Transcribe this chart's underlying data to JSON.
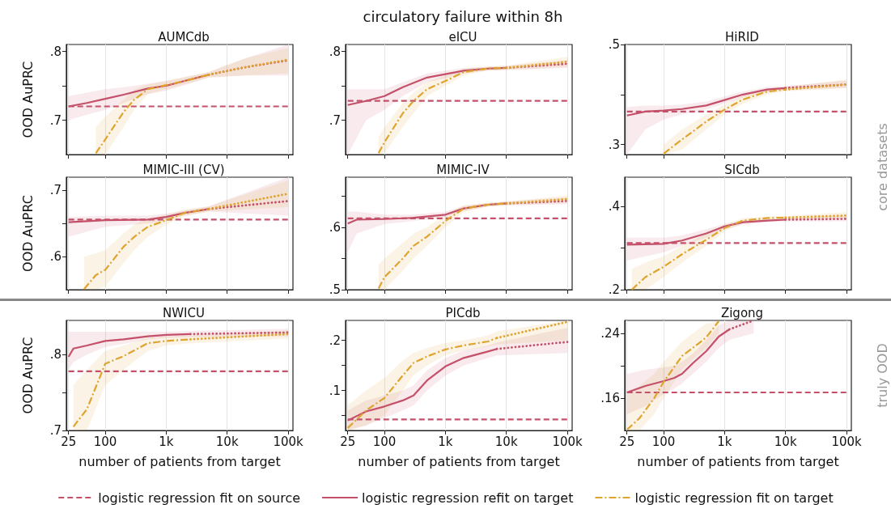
{
  "chart_data": [
    {
      "type": "line",
      "title": "AUMCdb",
      "ylabel": "OOD AuPRC",
      "log": "x",
      "grid": "x",
      "tick_labels": "y",
      "legend": "bottom",
      "xlim": [
        23,
        120000
      ],
      "xticks": [
        25,
        100,
        1000,
        10000,
        100000
      ],
      "ylim": [
        0.65,
        0.81
      ],
      "yticks": [
        {
          "value": 0.7,
          "label": ".7"
        },
        {
          "value": 0.75,
          "label": null
        },
        {
          "value": 0.8,
          "label": ".8"
        }
      ],
      "series": [
        {
          "name": "logistic regression fit on source",
          "color": "#c4506a",
          "line_style": "dashed",
          "x": [
            25,
            100000
          ],
          "values": [
            0.72,
            0.72
          ]
        },
        {
          "name": "logistic regression refit on target",
          "color": "#c4506a",
          "line_style": "solid",
          "x": [
            25,
            50,
            100,
            200,
            500,
            1000,
            2000,
            5000
          ],
          "values": [
            0.72,
            0.725,
            0.731,
            0.737,
            0.746,
            0.75,
            0.757,
            0.766
          ],
          "lower": [
            0.7,
            0.708,
            0.715,
            0.725,
            0.738,
            0.743,
            0.751,
            0.762
          ],
          "upper": [
            0.735,
            0.74,
            0.745,
            0.748,
            0.753,
            0.757,
            0.763,
            0.77
          ]
        },
        {
          "color": "#c4506a",
          "line_style": "dotted",
          "x": [
            5000,
            20000,
            100000
          ],
          "values": [
            0.766,
            0.777,
            0.787
          ],
          "lower": [
            0.762,
            0.765,
            0.765
          ],
          "upper": [
            0.77,
            0.79,
            0.81
          ]
        },
        {
          "name": "logistic regression fit on target",
          "color": "#dea42e",
          "line_style": "dashdot",
          "x": [
            70,
            100,
            200,
            300,
            500,
            1000,
            2000,
            5000
          ],
          "values": [
            0.652,
            0.672,
            0.712,
            0.73,
            0.745,
            0.751,
            0.757,
            0.766
          ],
          "lower": [
            0.65,
            0.65,
            0.69,
            0.715,
            0.738,
            0.745,
            0.752,
            0.762
          ],
          "upper": [
            0.69,
            0.705,
            0.73,
            0.745,
            0.752,
            0.757,
            0.762,
            0.77
          ]
        },
        {
          "color": "#dea42e",
          "line_style": "dotted",
          "x": [
            5000,
            20000,
            100000
          ],
          "values": [
            0.766,
            0.777,
            0.788
          ],
          "lower": [
            0.762,
            0.765,
            0.768
          ],
          "upper": [
            0.77,
            0.79,
            0.805
          ]
        }
      ]
    },
    {
      "type": "line",
      "title": "eICU",
      "log": "x",
      "grid": "x",
      "tick_labels": "y",
      "xlim": [
        23,
        120000
      ],
      "xticks": [
        25,
        100,
        1000,
        10000,
        100000
      ],
      "ylim": [
        0.65,
        0.81
      ],
      "yticks": [
        {
          "value": 0.7,
          "label": ".7"
        },
        {
          "value": 0.75,
          "label": null
        },
        {
          "value": 0.8,
          "label": ".8"
        }
      ],
      "annotations": [
        "circulatory failure within 8h"
      ],
      "series": [
        {
          "color": "#c4506a",
          "line_style": "dashed",
          "x": [
            25,
            100000
          ],
          "values": [
            0.728,
            0.728
          ]
        },
        {
          "color": "#c4506a",
          "line_style": "solid",
          "x": [
            25,
            50,
            100,
            200,
            500,
            1000,
            2000,
            5000,
            10000
          ],
          "values": [
            0.722,
            0.728,
            0.735,
            0.748,
            0.762,
            0.767,
            0.772,
            0.775,
            0.776
          ],
          "lower": [
            0.65,
            0.7,
            0.715,
            0.735,
            0.755,
            0.761,
            0.768,
            0.772,
            0.773
          ],
          "upper": [
            0.745,
            0.745,
            0.745,
            0.755,
            0.768,
            0.772,
            0.776,
            0.778,
            0.779
          ]
        },
        {
          "color": "#c4506a",
          "line_style": "dotted",
          "x": [
            10000,
            100000
          ],
          "values": [
            0.776,
            0.782
          ],
          "lower": [
            0.773,
            0.776
          ],
          "upper": [
            0.779,
            0.787
          ]
        },
        {
          "color": "#dea42e",
          "line_style": "dashdot",
          "x": [
            80,
            100,
            200,
            300,
            500,
            1000,
            2000,
            5000,
            10000
          ],
          "values": [
            0.652,
            0.668,
            0.71,
            0.728,
            0.745,
            0.757,
            0.77,
            0.775,
            0.776
          ],
          "lower": [
            0.65,
            0.652,
            0.69,
            0.71,
            0.735,
            0.75,
            0.765,
            0.772,
            0.773
          ],
          "upper": [
            0.675,
            0.69,
            0.725,
            0.74,
            0.755,
            0.765,
            0.775,
            0.778,
            0.779
          ]
        },
        {
          "color": "#dea42e",
          "line_style": "dotted",
          "x": [
            10000,
            100000
          ],
          "values": [
            0.776,
            0.785
          ],
          "lower": [
            0.773,
            0.778
          ],
          "upper": [
            0.779,
            0.792
          ]
        }
      ]
    },
    {
      "type": "line",
      "title": "HiRID",
      "log": "x",
      "grid": "x",
      "tick_labels": "y",
      "xlim": [
        23,
        120000
      ],
      "xticks": [
        25,
        100,
        1000,
        10000,
        100000
      ],
      "ylim": [
        0.28,
        0.5
      ],
      "yticks": [
        {
          "value": 0.3,
          "label": ".3"
        },
        {
          "value": 0.4,
          "label": null
        },
        {
          "value": 0.5,
          "label": ".5"
        }
      ],
      "annotations": [
        "core datasets"
      ],
      "series": [
        {
          "color": "#c4506a",
          "line_style": "dashed",
          "x": [
            25,
            100000
          ],
          "values": [
            0.366,
            0.366
          ]
        },
        {
          "color": "#c4506a",
          "line_style": "solid",
          "x": [
            25,
            50,
            100,
            200,
            500,
            1000,
            2000,
            5000,
            10000
          ],
          "values": [
            0.358,
            0.366,
            0.368,
            0.371,
            0.378,
            0.389,
            0.4,
            0.41,
            0.413
          ],
          "lower": [
            0.28,
            0.33,
            0.35,
            0.36,
            0.37,
            0.382,
            0.394,
            0.405,
            0.409
          ],
          "upper": [
            0.375,
            0.378,
            0.378,
            0.38,
            0.386,
            0.396,
            0.406,
            0.415,
            0.417
          ]
        },
        {
          "color": "#c4506a",
          "line_style": "dotted",
          "x": [
            10000,
            100000
          ],
          "values": [
            0.413,
            0.42
          ],
          "lower": [
            0.409,
            0.413
          ],
          "upper": [
            0.417,
            0.428
          ]
        },
        {
          "color": "#dea42e",
          "line_style": "dashdot",
          "x": [
            100,
            200,
            500,
            1000,
            2000,
            5000,
            10000
          ],
          "values": [
            0.282,
            0.31,
            0.346,
            0.37,
            0.39,
            0.406,
            0.41
          ],
          "lower": [
            0.28,
            0.29,
            0.33,
            0.36,
            0.382,
            0.4,
            0.406
          ],
          "upper": [
            0.3,
            0.33,
            0.36,
            0.38,
            0.398,
            0.412,
            0.415
          ]
        },
        {
          "color": "#dea42e",
          "line_style": "dotted",
          "x": [
            10000,
            100000
          ],
          "values": [
            0.41,
            0.42
          ],
          "lower": [
            0.406,
            0.413
          ],
          "upper": [
            0.415,
            0.43
          ]
        }
      ]
    },
    {
      "type": "line",
      "title": "MIMIC-III (CV)",
      "ylabel": "OOD AuPRC",
      "log": "x",
      "grid": "x",
      "tick_labels": "y",
      "xlim": [
        23,
        120000
      ],
      "xticks": [
        25,
        100,
        1000,
        10000,
        100000
      ],
      "ylim": [
        0.55,
        0.72
      ],
      "yticks": [
        {
          "value": 0.6,
          "label": ".6"
        },
        {
          "value": 0.65,
          "label": null
        },
        {
          "value": 0.7,
          "label": ".7"
        }
      ],
      "series": [
        {
          "color": "#c4506a",
          "line_style": "dashed",
          "x": [
            25,
            100000
          ],
          "values": [
            0.656,
            0.656
          ]
        },
        {
          "color": "#c4506a",
          "line_style": "solid",
          "x": [
            25,
            100,
            500,
            1000,
            2000,
            5000
          ],
          "values": [
            0.652,
            0.655,
            0.656,
            0.66,
            0.666,
            0.672
          ],
          "lower": [
            0.63,
            0.645,
            0.65,
            0.655,
            0.662,
            0.668
          ],
          "upper": [
            0.66,
            0.662,
            0.662,
            0.665,
            0.67,
            0.676
          ]
        },
        {
          "color": "#c4506a",
          "line_style": "dotted",
          "x": [
            5000,
            100000
          ],
          "values": [
            0.672,
            0.684
          ],
          "lower": [
            0.668,
            0.662
          ],
          "upper": [
            0.676,
            0.72
          ]
        },
        {
          "color": "#dea42e",
          "line_style": "dashdot",
          "x": [
            45,
            70,
            100,
            200,
            300,
            500,
            1000,
            2000,
            5000
          ],
          "values": [
            0.551,
            0.572,
            0.58,
            0.615,
            0.63,
            0.645,
            0.655,
            0.666,
            0.672
          ],
          "lower": [
            0.55,
            0.55,
            0.555,
            0.59,
            0.61,
            0.63,
            0.648,
            0.661,
            0.668
          ],
          "upper": [
            0.6,
            0.605,
            0.61,
            0.635,
            0.648,
            0.658,
            0.663,
            0.671,
            0.676
          ]
        },
        {
          "color": "#dea42e",
          "line_style": "dotted",
          "x": [
            5000,
            100000
          ],
          "values": [
            0.672,
            0.695
          ],
          "lower": [
            0.668,
            0.675
          ],
          "upper": [
            0.676,
            0.715
          ]
        }
      ]
    },
    {
      "type": "line",
      "title": "MIMIC-IV",
      "log": "x",
      "grid": "x",
      "tick_labels": "y",
      "xlim": [
        23,
        120000
      ],
      "xticks": [
        25,
        100,
        1000,
        10000,
        100000
      ],
      "ylim": [
        0.5,
        0.68
      ],
      "yticks": [
        {
          "value": 0.5,
          "label": ".5"
        },
        {
          "value": 0.55,
          "label": null
        },
        {
          "value": 0.6,
          "label": ".6"
        },
        {
          "value": 0.65,
          "label": null
        }
      ],
      "series": [
        {
          "color": "#c4506a",
          "line_style": "dashed",
          "x": [
            25,
            100000
          ],
          "values": [
            0.614,
            0.614
          ]
        },
        {
          "color": "#c4506a",
          "line_style": "solid",
          "x": [
            25,
            35,
            100,
            300,
            1000,
            2000,
            5000,
            10000
          ],
          "values": [
            0.606,
            0.612,
            0.613,
            0.615,
            0.62,
            0.63,
            0.636,
            0.638
          ],
          "lower": [
            0.56,
            0.59,
            0.605,
            0.61,
            0.616,
            0.626,
            0.633,
            0.635
          ],
          "upper": [
            0.625,
            0.625,
            0.62,
            0.62,
            0.625,
            0.634,
            0.639,
            0.641
          ]
        },
        {
          "color": "#c4506a",
          "line_style": "dotted",
          "x": [
            10000,
            100000
          ],
          "values": [
            0.638,
            0.642
          ],
          "lower": [
            0.635,
            0.637
          ],
          "upper": [
            0.641,
            0.648
          ]
        },
        {
          "color": "#dea42e",
          "line_style": "dashdot",
          "x": [
            80,
            100,
            200,
            300,
            500,
            1000,
            2000,
            5000,
            10000
          ],
          "values": [
            0.502,
            0.52,
            0.55,
            0.57,
            0.585,
            0.61,
            0.63,
            0.636,
            0.638
          ],
          "lower": [
            0.5,
            0.5,
            0.53,
            0.55,
            0.57,
            0.6,
            0.624,
            0.633,
            0.635
          ],
          "upper": [
            0.54,
            0.55,
            0.575,
            0.59,
            0.6,
            0.62,
            0.635,
            0.639,
            0.641
          ]
        },
        {
          "color": "#dea42e",
          "line_style": "dotted",
          "x": [
            10000,
            100000
          ],
          "values": [
            0.638,
            0.645
          ],
          "lower": [
            0.635,
            0.639
          ],
          "upper": [
            0.641,
            0.651
          ]
        }
      ]
    },
    {
      "type": "line",
      "title": "SICdb",
      "log": "x",
      "grid": "x",
      "tick_labels": "y",
      "xlim": [
        23,
        120000
      ],
      "xticks": [
        25,
        100,
        1000,
        10000,
        100000
      ],
      "ylim": [
        0.2,
        0.47
      ],
      "yticks": [
        {
          "value": 0.2,
          "label": ".2"
        },
        {
          "value": 0.3,
          "label": null
        },
        {
          "value": 0.4,
          "label": ".4"
        }
      ],
      "series": [
        {
          "color": "#c4506a",
          "line_style": "dashed",
          "x": [
            25,
            100000
          ],
          "values": [
            0.312,
            0.312
          ]
        },
        {
          "color": "#c4506a",
          "line_style": "solid",
          "x": [
            25,
            100,
            200,
            500,
            1000,
            2000,
            5000,
            10000
          ],
          "values": [
            0.308,
            0.31,
            0.318,
            0.335,
            0.352,
            0.362,
            0.366,
            0.368
          ],
          "lower": [
            0.27,
            0.29,
            0.305,
            0.325,
            0.345,
            0.356,
            0.362,
            0.364
          ],
          "upper": [
            0.325,
            0.325,
            0.33,
            0.345,
            0.358,
            0.367,
            0.37,
            0.372
          ]
        },
        {
          "color": "#c4506a",
          "line_style": "dotted",
          "x": [
            10000,
            100000
          ],
          "values": [
            0.368,
            0.37
          ],
          "lower": [
            0.364,
            0.364
          ],
          "upper": [
            0.372,
            0.378
          ]
        },
        {
          "color": "#dea42e",
          "line_style": "dashdot",
          "x": [
            30,
            50,
            100,
            200,
            500,
            1000,
            2000,
            5000,
            10000
          ],
          "values": [
            0.2,
            0.23,
            0.255,
            0.285,
            0.32,
            0.348,
            0.366,
            0.372,
            0.373
          ],
          "lower": [
            0.2,
            0.2,
            0.23,
            0.265,
            0.305,
            0.34,
            0.36,
            0.368,
            0.369
          ],
          "upper": [
            0.25,
            0.265,
            0.28,
            0.305,
            0.335,
            0.356,
            0.372,
            0.376,
            0.377
          ]
        },
        {
          "color": "#dea42e",
          "line_style": "dotted",
          "x": [
            10000,
            100000
          ],
          "values": [
            0.373,
            0.378
          ],
          "lower": [
            0.369,
            0.37
          ],
          "upper": [
            0.377,
            0.386
          ]
        }
      ]
    },
    {
      "type": "line",
      "title": "NWICU",
      "xlabel": "number of patients from target",
      "ylabel": "OOD AuPRC",
      "log": "x",
      "grid": "x",
      "xlim": [
        23,
        120000
      ],
      "xticks": [
        25,
        {
          "value": 100,
          "label": "100"
        },
        {
          "value": 1000,
          "label": "1k"
        },
        {
          "value": 10000,
          "label": "10k"
        },
        {
          "value": 100000,
          "label": "100k"
        }
      ],
      "ylim": [
        0.7,
        0.845
      ],
      "yticks": [
        {
          "value": 0.7,
          "label": ".7"
        },
        {
          "value": 0.75,
          "label": null
        },
        {
          "value": 0.8,
          "label": ".8"
        }
      ],
      "annotations": [
        "truly OOD"
      ],
      "series": [
        {
          "color": "#c4506a",
          "line_style": "dashed",
          "x": [
            25,
            100000
          ],
          "values": [
            0.778,
            0.778
          ]
        },
        {
          "color": "#c4506a",
          "line_style": "solid",
          "x": [
            25,
            30,
            50,
            100,
            200,
            500,
            1000,
            2500
          ],
          "values": [
            0.797,
            0.808,
            0.812,
            0.818,
            0.82,
            0.824,
            0.826,
            0.827
          ],
          "lower": [
            0.78,
            0.79,
            0.8,
            0.81,
            0.814,
            0.82,
            0.822,
            0.823
          ],
          "upper": [
            0.83,
            0.83,
            0.83,
            0.83,
            0.83,
            0.83,
            0.83,
            0.831
          ]
        },
        {
          "color": "#c4506a",
          "line_style": "dotted",
          "x": [
            2500,
            100000
          ],
          "values": [
            0.827,
            0.829
          ],
          "lower": [
            0.823,
            0.824
          ],
          "upper": [
            0.831,
            0.834
          ]
        },
        {
          "color": "#dea42e",
          "line_style": "dashdot",
          "x": [
            30,
            50,
            100,
            200,
            500,
            1000,
            2500
          ],
          "values": [
            0.705,
            0.728,
            0.788,
            0.798,
            0.815,
            0.818,
            0.82
          ],
          "lower": [
            0.7,
            0.7,
            0.76,
            0.78,
            0.805,
            0.812,
            0.815
          ],
          "upper": [
            0.76,
            0.78,
            0.805,
            0.812,
            0.822,
            0.824,
            0.825
          ]
        },
        {
          "color": "#dea42e",
          "line_style": "dotted",
          "x": [
            2500,
            100000
          ],
          "values": [
            0.82,
            0.827
          ],
          "lower": [
            0.815,
            0.821
          ],
          "upper": [
            0.825,
            0.832
          ]
        }
      ]
    },
    {
      "type": "line",
      "title": "PICdb",
      "xlabel": "number of patients from target",
      "log": "x",
      "grid": "x",
      "xlim": [
        23,
        120000
      ],
      "xticks": [
        25,
        {
          "value": 100,
          "label": "100"
        },
        {
          "value": 1000,
          "label": "1k"
        },
        {
          "value": 10000,
          "label": "10k"
        },
        {
          "value": 100000,
          "label": "100k"
        }
      ],
      "ylim": [
        0.02,
        0.24
      ],
      "yticks": [
        {
          "value": 0.05,
          "label": null
        },
        {
          "value": 0.1,
          "label": ".1"
        },
        {
          "value": 0.15,
          "label": null
        },
        {
          "value": 0.2,
          "label": ".2"
        }
      ],
      "series": [
        {
          "color": "#c4506a",
          "line_style": "dashed",
          "x": [
            25,
            100000
          ],
          "values": [
            0.042,
            0.042
          ]
        },
        {
          "color": "#c4506a",
          "line_style": "solid",
          "x": [
            25,
            50,
            100,
            200,
            300,
            500,
            1000,
            2000,
            5000,
            7000
          ],
          "values": [
            0.04,
            0.058,
            0.068,
            0.08,
            0.09,
            0.12,
            0.148,
            0.165,
            0.178,
            0.183
          ],
          "lower": [
            0.02,
            0.03,
            0.045,
            0.06,
            0.07,
            0.1,
            0.13,
            0.15,
            0.165,
            0.17
          ],
          "upper": [
            0.06,
            0.08,
            0.09,
            0.1,
            0.11,
            0.14,
            0.165,
            0.18,
            0.19,
            0.196
          ]
        },
        {
          "color": "#c4506a",
          "line_style": "dotted",
          "x": [
            7000,
            100000
          ],
          "values": [
            0.183,
            0.197
          ],
          "lower": [
            0.17,
            0.175
          ],
          "upper": [
            0.196,
            0.225
          ]
        },
        {
          "color": "#dea42e",
          "line_style": "dashdot",
          "x": [
            25,
            50,
            100,
            200,
            300,
            500,
            1000,
            2000,
            5000,
            7000
          ],
          "values": [
            0.025,
            0.06,
            0.085,
            0.13,
            0.155,
            0.168,
            0.182,
            0.19,
            0.198,
            0.205
          ],
          "lower": [
            0.02,
            0.03,
            0.05,
            0.1,
            0.13,
            0.15,
            0.17,
            0.18,
            0.188,
            0.192
          ],
          "upper": [
            0.07,
            0.1,
            0.125,
            0.16,
            0.175,
            0.185,
            0.195,
            0.2,
            0.21,
            0.218
          ]
        },
        {
          "color": "#dea42e",
          "line_style": "dotted",
          "x": [
            7000,
            100000
          ],
          "values": [
            0.205,
            0.237
          ],
          "lower": [
            0.192,
            0.2
          ],
          "upper": [
            0.218,
            0.24
          ]
        }
      ]
    },
    {
      "type": "line",
      "title": "Zigong",
      "xlabel": "number of patients from target",
      "log": "x",
      "grid": "x",
      "xlim": [
        23,
        120000
      ],
      "xticks": [
        25,
        {
          "value": 100,
          "label": "100"
        },
        {
          "value": 1000,
          "label": "1k"
        },
        {
          "value": 10000,
          "label": "10k"
        },
        {
          "value": 100000,
          "label": "100k"
        }
      ],
      "ylim": [
        0.12,
        0.256
      ],
      "yticks": [
        {
          "value": 0.16,
          "label": ".16"
        },
        {
          "value": 0.2,
          "label": null
        },
        {
          "value": 0.24,
          "label": ".24"
        }
      ],
      "series": [
        {
          "color": "#c4506a",
          "line_style": "dashed",
          "x": [
            25,
            100000
          ],
          "values": [
            0.167,
            0.167
          ]
        },
        {
          "color": "#c4506a",
          "line_style": "solid",
          "x": [
            25,
            50,
            100,
            150,
            200,
            300,
            500,
            800,
            1200
          ],
          "values": [
            0.167,
            0.175,
            0.181,
            0.185,
            0.19,
            0.203,
            0.218,
            0.236,
            0.245
          ],
          "lower": [
            0.14,
            0.15,
            0.165,
            0.172,
            0.178,
            0.19,
            0.205,
            0.222,
            0.232
          ],
          "upper": [
            0.19,
            0.195,
            0.198,
            0.2,
            0.205,
            0.215,
            0.232,
            0.25,
            0.256
          ]
        },
        {
          "color": "#c4506a",
          "line_style": "dotted",
          "x": [
            1200,
            3000
          ],
          "values": [
            0.245,
            0.256
          ],
          "lower": [
            0.232,
            0.24
          ],
          "upper": [
            0.256,
            0.256
          ]
        },
        {
          "color": "#dea42e",
          "line_style": "dashdot",
          "x": [
            25,
            40,
            70,
            100,
            200,
            300,
            500,
            800
          ],
          "values": [
            0.121,
            0.135,
            0.16,
            0.18,
            0.212,
            0.222,
            0.235,
            0.255
          ],
          "lower": [
            0.12,
            0.12,
            0.14,
            0.16,
            0.195,
            0.208,
            0.222,
            0.24
          ],
          "upper": [
            0.165,
            0.175,
            0.19,
            0.205,
            0.23,
            0.24,
            0.252,
            0.256
          ]
        }
      ]
    }
  ]
}
